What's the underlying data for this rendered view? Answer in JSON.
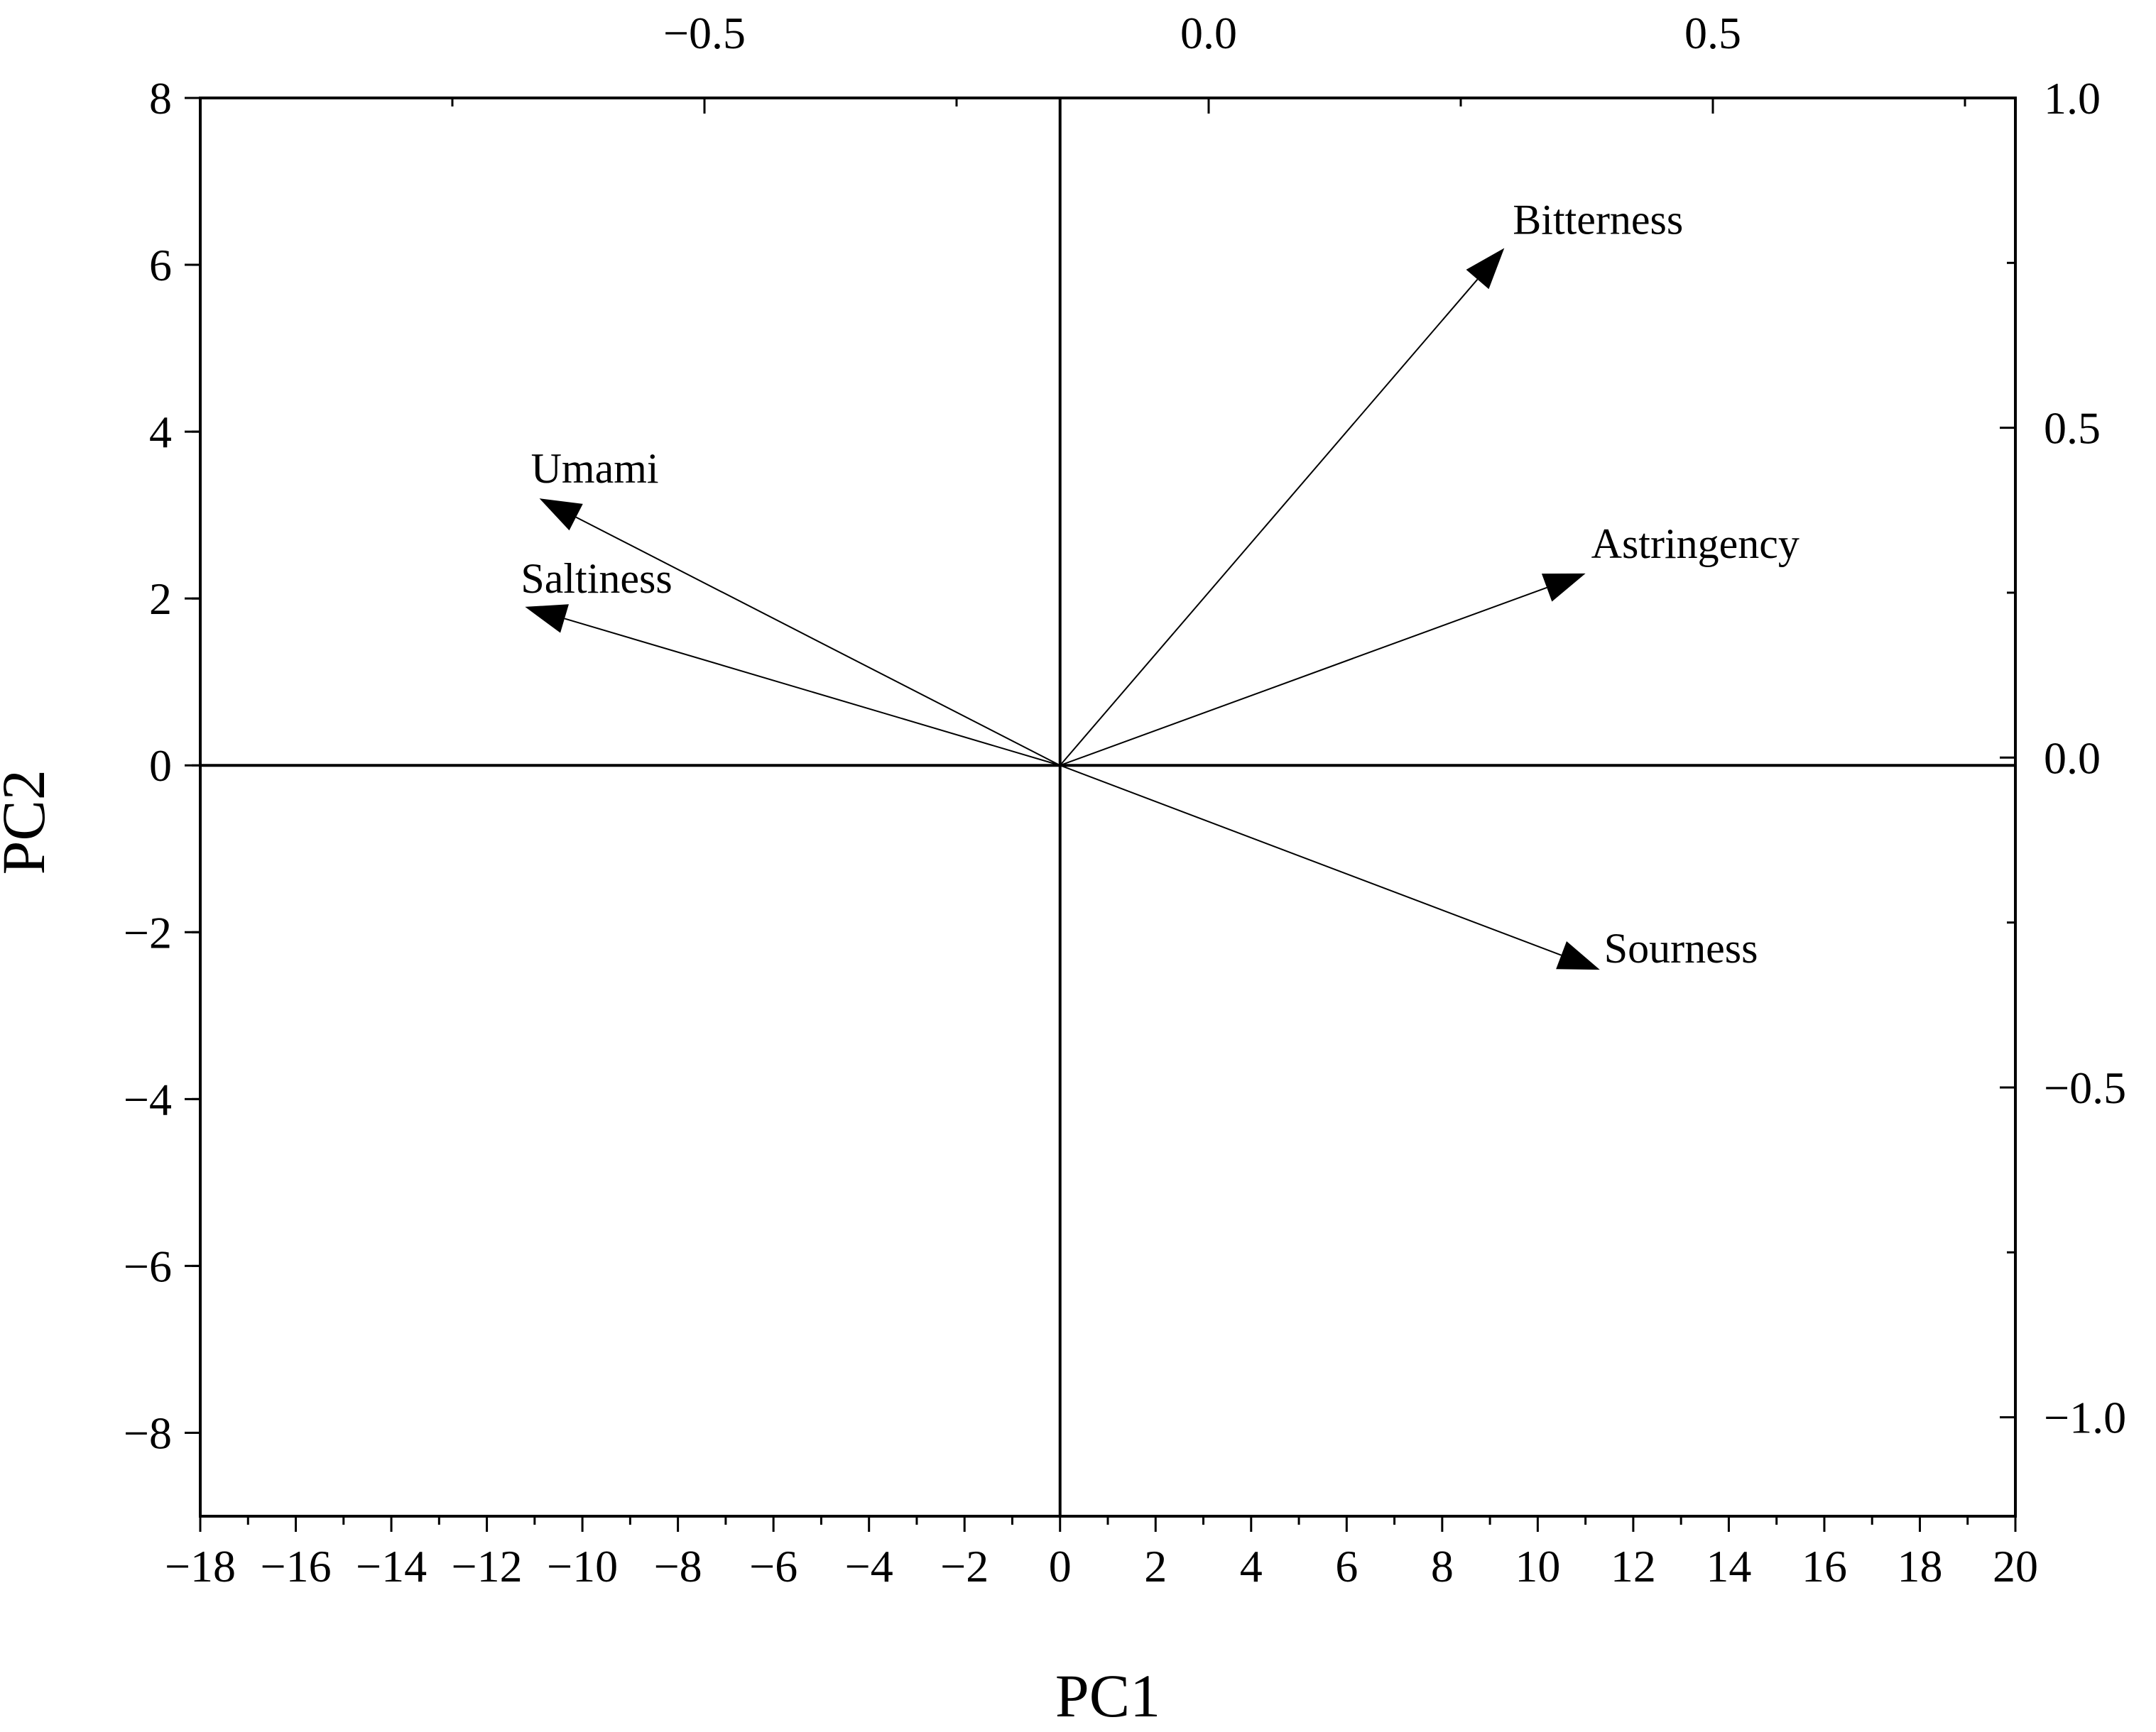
{
  "chart_data": {
    "type": "biplot",
    "xlabel": "PC1",
    "ylabel": "PC2",
    "xlim": [
      -18,
      20
    ],
    "ylim": [
      -9,
      8
    ],
    "x_ticks": [
      -18,
      -16,
      -14,
      -12,
      -10,
      -8,
      -6,
      -4,
      -2,
      0,
      2,
      4,
      6,
      8,
      10,
      12,
      14,
      16,
      18,
      20
    ],
    "x_tick_labels": [
      "−18",
      "−16",
      "−14",
      "−12",
      "−10",
      "−8",
      "−6",
      "−4",
      "−2",
      "0",
      "2",
      "4",
      "6",
      "8",
      "10",
      "12",
      "14",
      "16",
      "18",
      "20"
    ],
    "y_ticks": [
      -8,
      -6,
      -4,
      -2,
      0,
      2,
      4,
      6,
      8
    ],
    "y_tick_labels": [
      "−8",
      "−6",
      "−4",
      "−2",
      "0",
      "2",
      "4",
      "6",
      "8"
    ],
    "secondary_xlim": [
      -1.0,
      0.8
    ],
    "secondary_x_ticks": [
      -0.5,
      0.0,
      0.5
    ],
    "secondary_x_tick_labels": [
      "−0.5",
      "0.0",
      "0.5"
    ],
    "secondary_ylim": [
      -1.15,
      1.0
    ],
    "secondary_y_ticks": [
      -1.0,
      -0.5,
      0.0,
      0.5,
      1.0
    ],
    "secondary_y_tick_labels": [
      "−1.0",
      "−0.5",
      "0.0",
      "0.5",
      "1.0"
    ],
    "grid": false,
    "zero_lines": true,
    "vectors": [
      {
        "label": "Bitterness",
        "x": 9.3,
        "y": 6.2
      },
      {
        "label": "Astringency",
        "x": 11.0,
        "y": 2.3
      },
      {
        "label": "Umami",
        "x": -10.9,
        "y": 3.2
      },
      {
        "label": "Saltiness",
        "x": -11.2,
        "y": 1.9
      },
      {
        "label": "Sourness",
        "x": 11.3,
        "y": -2.45
      }
    ]
  }
}
